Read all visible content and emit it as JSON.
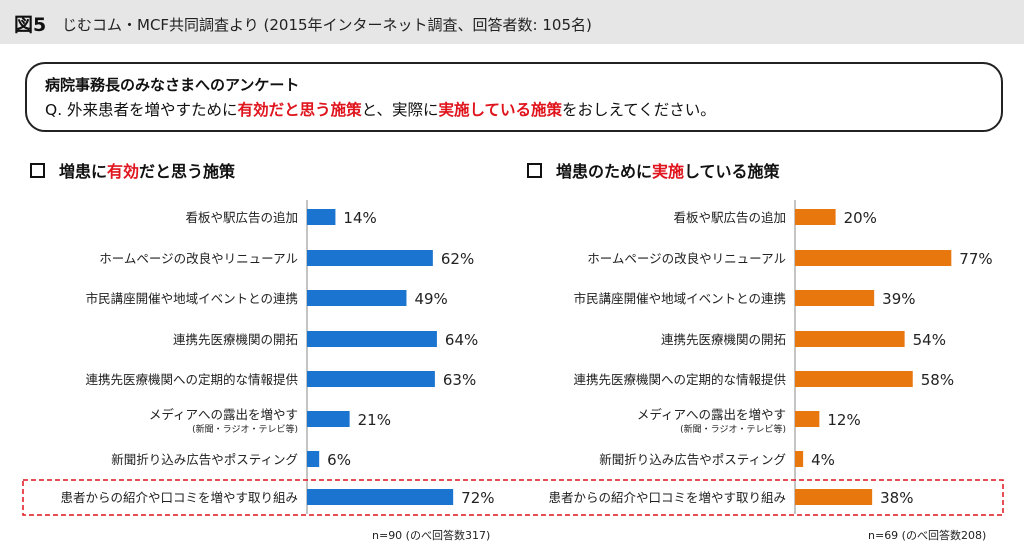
{
  "header": {
    "fig_num": "図5",
    "caption": "じむコム・MCF共同調査より (2015年インターネット調査、回答者数: 105名)"
  },
  "question": {
    "title": "病院事務長のみなさまへのアンケート",
    "parts": [
      {
        "text": "Q. 外来患者を増やすために",
        "red": false
      },
      {
        "text": "有効だと思う施策",
        "red": true
      },
      {
        "text": "と、実際に",
        "red": false
      },
      {
        "text": "実施している施策",
        "red": true
      },
      {
        "text": "をおしえてください。",
        "red": false
      }
    ]
  },
  "left_heading": [
    {
      "text": "増患に",
      "red": false
    },
    {
      "text": "有効",
      "red": true
    },
    {
      "text": "だと思う施策",
      "red": false
    }
  ],
  "right_heading": [
    {
      "text": "増患のために",
      "red": false
    },
    {
      "text": "実施",
      "red": true
    },
    {
      "text": "している施策",
      "red": false
    }
  ],
  "chart_data": [
    {
      "type": "bar",
      "orientation": "horizontal",
      "color": "#1b75d0",
      "categories": [
        "看板や駅広告の追加",
        "ホームページの改良やリニューアル",
        "市民講座開催や地域イベントとの連携",
        "連携先医療機関の開拓",
        "連携先医療機関への定期的な情報提供",
        "メディアへの露出を増やす",
        "新聞折り込み広告やポスティング",
        "患者からの紹介や口コミを増やす取り組み"
      ],
      "sub_labels": [
        "",
        "",
        "",
        "",
        "",
        "(新聞・ラジオ・テレビ等)",
        "",
        ""
      ],
      "values": [
        14,
        62,
        49,
        64,
        63,
        21,
        6,
        72
      ],
      "value_labels": [
        "14%",
        "62%",
        "49%",
        "64%",
        "63%",
        "21%",
        "6%",
        "72%"
      ],
      "xlim": [
        0,
        100
      ],
      "note": "n=90 (のべ回答数317)"
    },
    {
      "type": "bar",
      "orientation": "horizontal",
      "color": "#e8770e",
      "categories": [
        "看板や駅広告の追加",
        "ホームページの改良やリニューアル",
        "市民講座開催や地域イベントとの連携",
        "連携先医療機関の開拓",
        "連携先医療機関への定期的な情報提供",
        "メディアへの露出を増やす",
        "新聞折り込み広告やポスティング",
        "患者からの紹介や口コミを増やす取り組み"
      ],
      "sub_labels": [
        "",
        "",
        "",
        "",
        "",
        "(新聞・ラジオ・テレビ等)",
        "",
        ""
      ],
      "values": [
        20,
        77,
        39,
        54,
        58,
        12,
        4,
        38
      ],
      "value_labels": [
        "20%",
        "77%",
        "39%",
        "54%",
        "58%",
        "12%",
        "4%",
        "38%"
      ],
      "xlim": [
        0,
        100
      ],
      "note": "n=69 (のべ回答数208)"
    }
  ],
  "highlight": {
    "row_index": 7,
    "border_color": "#e0141c"
  }
}
